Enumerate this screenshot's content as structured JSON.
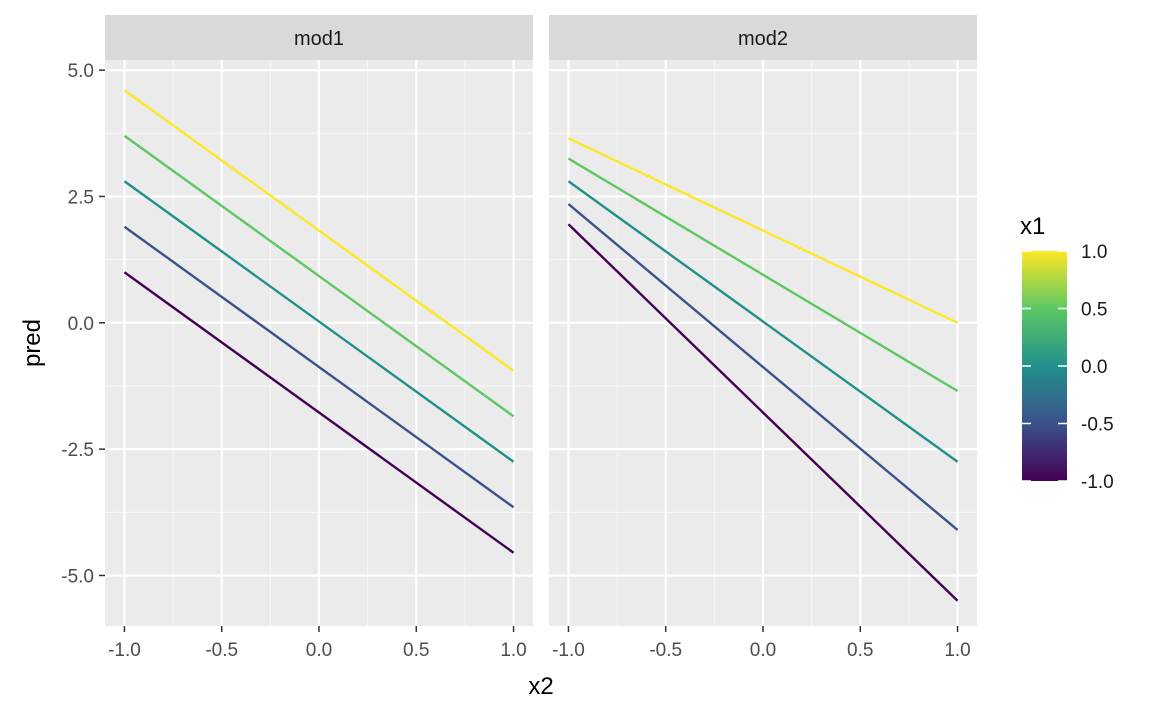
{
  "chart_data": {
    "type": "line",
    "xlabel": "x2",
    "ylabel": "pred",
    "xlim": [
      -1.1,
      1.1
    ],
    "ylim": [
      -6,
      5.2
    ],
    "x_ticks": [
      -1.0,
      -0.5,
      0.0,
      0.5,
      1.0
    ],
    "x_tick_labels": [
      "-1.0",
      "-0.5",
      "0.0",
      "0.5",
      "1.0"
    ],
    "y_ticks": [
      5.0,
      2.5,
      0.0,
      -2.5,
      -5.0
    ],
    "y_tick_labels": [
      "5.0",
      "2.5",
      "0.0",
      "-2.5",
      "-5.0"
    ],
    "grid": true,
    "legend": {
      "title": "x1",
      "placement": "right",
      "type": "colorbar",
      "range": [
        -1.0,
        1.0
      ],
      "tick_values": [
        1.0,
        0.5,
        0.0,
        -0.5,
        -1.0
      ],
      "tick_labels": [
        "1.0",
        "0.5",
        "0.0",
        "-0.5",
        "-1.0"
      ],
      "colors": [
        "#440154",
        "#3B528B",
        "#21908C",
        "#5DC863",
        "#FDE725"
      ]
    },
    "facets": [
      {
        "label": "mod1",
        "series": [
          {
            "x1": -1.0,
            "color": "#440154",
            "x": [
              -1.0,
              1.0
            ],
            "y": [
              1.0,
              -4.55
            ]
          },
          {
            "x1": -0.5,
            "color": "#3B528B",
            "x": [
              -1.0,
              1.0
            ],
            "y": [
              1.9,
              -3.65
            ]
          },
          {
            "x1": 0.0,
            "color": "#21908C",
            "x": [
              -1.0,
              1.0
            ],
            "y": [
              2.8,
              -2.75
            ]
          },
          {
            "x1": 0.5,
            "color": "#5DC863",
            "x": [
              -1.0,
              1.0
            ],
            "y": [
              3.7,
              -1.85
            ]
          },
          {
            "x1": 1.0,
            "color": "#FDE725",
            "x": [
              -1.0,
              1.0
            ],
            "y": [
              4.6,
              -0.95
            ]
          }
        ]
      },
      {
        "label": "mod2",
        "series": [
          {
            "x1": -1.0,
            "color": "#440154",
            "x": [
              -1.0,
              1.0
            ],
            "y": [
              1.95,
              -5.5
            ]
          },
          {
            "x1": -0.5,
            "color": "#3B528B",
            "x": [
              -1.0,
              1.0
            ],
            "y": [
              2.35,
              -4.1
            ]
          },
          {
            "x1": 0.0,
            "color": "#21908C",
            "x": [
              -1.0,
              1.0
            ],
            "y": [
              2.8,
              -2.75
            ]
          },
          {
            "x1": 0.5,
            "color": "#5DC863",
            "x": [
              -1.0,
              1.0
            ],
            "y": [
              3.25,
              -1.35
            ]
          },
          {
            "x1": 1.0,
            "color": "#FDE725",
            "x": [
              -1.0,
              1.0
            ],
            "y": [
              3.65,
              0.0
            ]
          }
        ]
      }
    ]
  }
}
